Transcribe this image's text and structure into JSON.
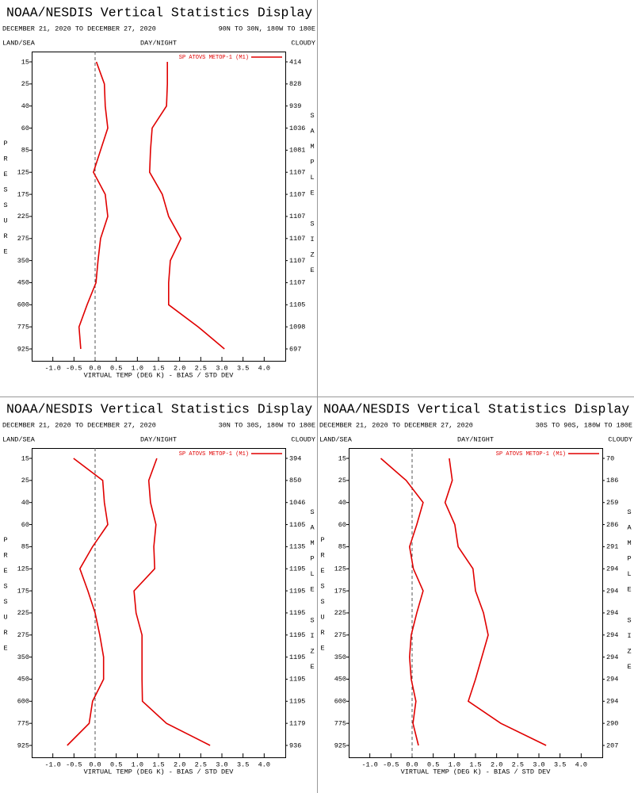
{
  "chart_data": [
    {
      "type": "line",
      "title": "NOAA/NESDIS Vertical Statistics Display",
      "date_range": "DECEMBER 21, 2020 TO DECEMBER 27, 2020",
      "region": "90N TO 30N, 180W TO 180E",
      "left_label": "LAND/SEA",
      "center_label": "DAY/NIGHT",
      "right_label": "CLOUDY",
      "y_label": "PRESSURE",
      "y2_label": "SAMPLE SIZE",
      "x_label": "VIRTUAL TEMP (DEG K) - BIAS / STD DEV",
      "categories": [
        15,
        25,
        40,
        60,
        85,
        125,
        175,
        225,
        275,
        350,
        450,
        600,
        775,
        925
      ],
      "sample_sizes": [
        414,
        828,
        939,
        1036,
        1081,
        1107,
        1107,
        1107,
        1107,
        1107,
        1107,
        1105,
        1098,
        697
      ],
      "series": [
        {
          "name": "SP ATOVS METOP-1 (M1)",
          "color": "#e00000",
          "values": [
            0.03,
            0.22,
            0.24,
            0.3,
            0.13,
            -0.04,
            0.24,
            0.3,
            0.13,
            0.07,
            0.02,
            -0.19,
            -0.38,
            -0.34
          ]
        },
        {
          "color": "#e00000",
          "values": [
            1.71,
            1.71,
            1.69,
            1.35,
            1.31,
            1.29,
            1.59,
            1.74,
            2.03,
            1.78,
            1.74,
            1.74,
            2.44,
            3.06
          ]
        }
      ],
      "xlim": [
        -1.5,
        4.5
      ],
      "xticks": [
        {
          "value": -1,
          "label": "-1.0"
        },
        -0.5,
        {
          "value": 0,
          "label": "0.0"
        },
        0.5,
        {
          "value": 1,
          "label": "1.0"
        },
        1.5,
        {
          "value": 2,
          "label": "2.0"
        },
        2.5,
        {
          "value": 3,
          "label": "3.0"
        },
        3.5,
        {
          "value": 4,
          "label": "4.0"
        }
      ],
      "reference_line": 0
    },
    {
      "type": "line",
      "title": "NOAA/NESDIS Vertical Statistics Display",
      "date_range": "DECEMBER 21, 2020 TO DECEMBER 27, 2020",
      "region": "30N TO 30S, 180W TO 180E",
      "left_label": "LAND/SEA",
      "center_label": "DAY/NIGHT",
      "right_label": "CLOUDY",
      "y_label": "PRESSURE",
      "y2_label": "SAMPLE SIZE",
      "x_label": "VIRTUAL TEMP (DEG K) - BIAS / STD DEV",
      "categories": [
        15,
        25,
        40,
        60,
        85,
        125,
        175,
        225,
        275,
        350,
        450,
        600,
        775,
        925
      ],
      "sample_sizes": [
        394,
        850,
        1046,
        1105,
        1135,
        1195,
        1195,
        1195,
        1195,
        1195,
        1195,
        1195,
        1179,
        936
      ],
      "series": [
        {
          "name": "SP ATOVS METOP-1 (M1)",
          "color": "#e00000",
          "values": [
            -0.51,
            0.18,
            0.22,
            0.3,
            -0.06,
            -0.36,
            -0.17,
            0,
            0.11,
            0.2,
            0.2,
            -0.06,
            -0.14,
            -0.66
          ]
        },
        {
          "color": "#e00000",
          "values": [
            1.46,
            1.27,
            1.31,
            1.44,
            1.39,
            1.41,
            0.92,
            0.97,
            1.11,
            1.11,
            1.11,
            1.12,
            1.69,
            2.72
          ]
        }
      ],
      "xlim": [
        -1.5,
        4.5
      ],
      "xticks": [
        {
          "value": -1,
          "label": "-1.0"
        },
        -0.5,
        {
          "value": 0,
          "label": "0.0"
        },
        0.5,
        {
          "value": 1,
          "label": "1.0"
        },
        1.5,
        {
          "value": 2,
          "label": "2.0"
        },
        2.5,
        {
          "value": 3,
          "label": "3.0"
        },
        3.5,
        {
          "value": 4,
          "label": "4.0"
        }
      ],
      "reference_line": 0
    },
    {
      "type": "line",
      "title": "NOAA/NESDIS Vertical Statistics Display",
      "date_range": "DECEMBER 21, 2020 TO DECEMBER 27, 2020",
      "region": "30S TO 90S, 180W TO 180E",
      "left_label": "LAND/SEA",
      "center_label": "DAY/NIGHT",
      "right_label": "CLOUDY",
      "y_label": "PRESSURE",
      "y2_label": "SAMPLE SIZE",
      "x_label": "VIRTUAL TEMP (DEG K) - BIAS / STD DEV",
      "categories": [
        15,
        25,
        40,
        60,
        85,
        125,
        175,
        225,
        275,
        350,
        450,
        600,
        775,
        925
      ],
      "sample_sizes": [
        70,
        186,
        259,
        286,
        291,
        294,
        294,
        294,
        294,
        294,
        294,
        294,
        290,
        207
      ],
      "series": [
        {
          "name": "SP ATOVS METOP-1 (M1)",
          "color": "#e00000",
          "values": [
            -0.74,
            -0.14,
            0.26,
            0.11,
            -0.06,
            0.03,
            0.26,
            0.11,
            -0.02,
            -0.06,
            -0.02,
            0.09,
            0.02,
            0.15
          ]
        },
        {
          "color": "#e00000",
          "values": [
            0.88,
            0.95,
            0.78,
            1.01,
            1.09,
            1.44,
            1.5,
            1.69,
            1.8,
            1.65,
            1.5,
            1.33,
            2.1,
            3.17
          ]
        }
      ],
      "xlim": [
        -1.5,
        4.5
      ],
      "xticks": [
        {
          "value": -1,
          "label": "-1.0"
        },
        -0.5,
        {
          "value": 0,
          "label": "0.0"
        },
        0.5,
        {
          "value": 1,
          "label": "1.0"
        },
        1.5,
        {
          "value": 2,
          "label": "2.0"
        },
        2.5,
        {
          "value": 3,
          "label": "3.0"
        },
        3.5,
        {
          "value": 4,
          "label": "4.0"
        }
      ],
      "reference_line": 0
    }
  ]
}
